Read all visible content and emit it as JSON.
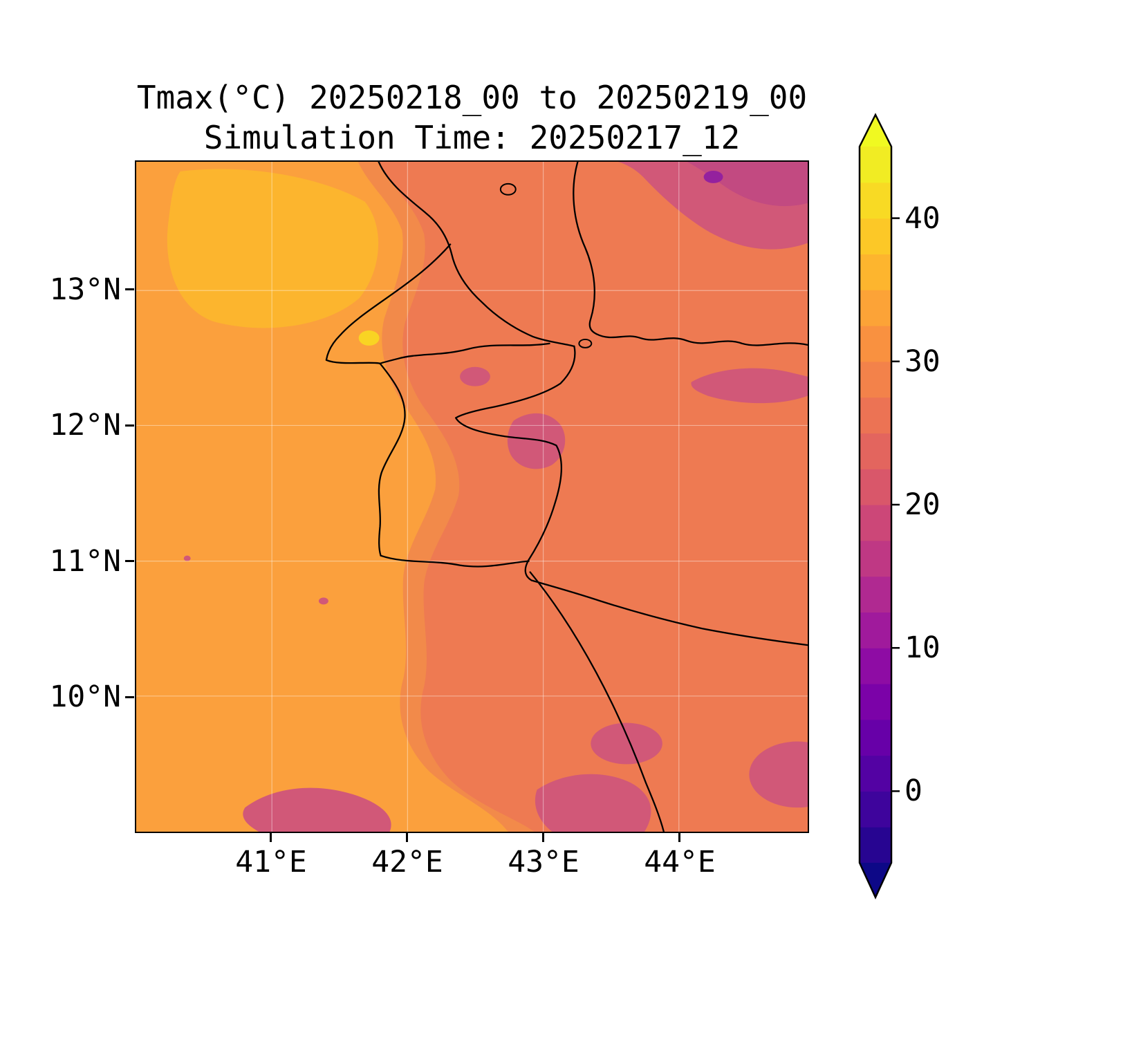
{
  "figure": {
    "title_line1": "Tmax(°C) 20250218_00 to 20250219_00",
    "title_line2": "Simulation Time: 20250217_12"
  },
  "axes": {
    "x_tick_labels": [
      "41°E",
      "42°E",
      "43°E",
      "44°E"
    ],
    "y_tick_labels": [
      "13°N",
      "12°N",
      "11°N",
      "10°N"
    ]
  },
  "colorbar": {
    "vmin": -5,
    "vmax": 45,
    "tick_values": [
      40,
      30,
      20,
      10,
      0
    ],
    "tick_labels": [
      "40",
      "30",
      "20",
      "10",
      "0"
    ],
    "over_color": "#f0f921",
    "under_color": "#0d0887",
    "band_colors_bottom_to_top": [
      "#270591",
      "#3e049c",
      "#5302a3",
      "#6700a8",
      "#7b02a8",
      "#8e0ca4",
      "#a01a9c",
      "#b02991",
      "#bf3884",
      "#cc4778",
      "#d9576a",
      "#e3655e",
      "#ec7354",
      "#f3824a",
      "#f99140",
      "#fca337",
      "#fdb52e",
      "#fcc827",
      "#f8da24",
      "#f1ec23"
    ]
  },
  "map": {
    "colors": {
      "base_salmon": "#ee7a52",
      "orange_deep": "#f28a4a",
      "orange_main": "#fba03d",
      "warm_yellow": "#fcb52e",
      "hot_spot": "#f9d423",
      "magenta": "#d15878",
      "magenta_dark": "#c24a81",
      "purple": "#94219e",
      "coastline": "#000000"
    }
  },
  "chart_data": {
    "type": "heatmap",
    "title": "Tmax(°C) 20250218_00 to 20250219_00",
    "subtitle": "Simulation Time: 20250217_12",
    "units": "°C",
    "colormap": "plasma (discrete 2.5°C bands)",
    "levels": {
      "min": -5,
      "max": 45,
      "step": 2.5
    },
    "extent": {
      "lon_min": 40.0,
      "lon_max": 44.95,
      "lat_min": 9.0,
      "lat_max": 13.95
    },
    "xlabel": "",
    "ylabel": "",
    "x_ticks_deg_east": [
      41,
      42,
      43,
      44
    ],
    "y_ticks_deg_north": [
      13,
      12,
      11,
      10
    ],
    "colorbar_ticks": [
      40,
      30,
      20,
      10,
      0
    ],
    "legend_position": "right",
    "grid": true,
    "grid_lon": [
      40.25,
      40.75,
      41.25,
      41.75,
      42.25,
      42.75,
      43.25,
      43.75,
      44.25,
      44.75
    ],
    "grid_lat": [
      13.75,
      13.25,
      12.75,
      12.25,
      11.75,
      11.25,
      10.75,
      10.25,
      9.75,
      9.25
    ],
    "tmax_c": [
      [
        34,
        36,
        37,
        33,
        30,
        28,
        28,
        26,
        23,
        23
      ],
      [
        34,
        37,
        38,
        34,
        29,
        28,
        28,
        27,
        24,
        26
      ],
      [
        33,
        34,
        34,
        32,
        29,
        28,
        28,
        27,
        27,
        27
      ],
      [
        33,
        33,
        33,
        32,
        31,
        28,
        28,
        28,
        27,
        24
      ],
      [
        33,
        33,
        32,
        31,
        33,
        24,
        28,
        28,
        28,
        27
      ],
      [
        33,
        33,
        32,
        33,
        31,
        28,
        28,
        28,
        28,
        28
      ],
      [
        33,
        33,
        32,
        32,
        29,
        28,
        28,
        28,
        28,
        28
      ],
      [
        33,
        33,
        33,
        32,
        31,
        28,
        27,
        24,
        27,
        27
      ],
      [
        33,
        32,
        31,
        33,
        30,
        28,
        24,
        26,
        28,
        24
      ],
      [
        32,
        31,
        24,
        31,
        28,
        26,
        24,
        28,
        27,
        26
      ]
    ]
  }
}
